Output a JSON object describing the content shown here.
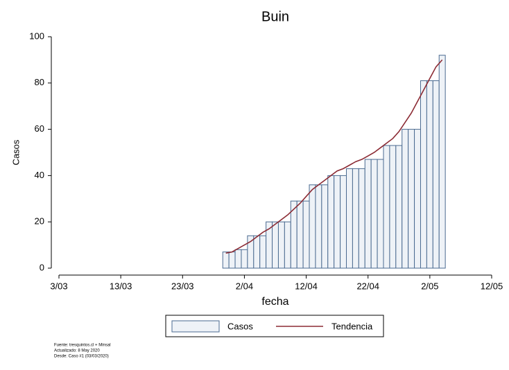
{
  "chart_data": {
    "type": "bar",
    "title": "Buin",
    "xlabel": "fecha",
    "ylabel": "Casos",
    "x": [
      "30/03",
      "31/03",
      "1/04",
      "2/04",
      "3/04",
      "4/04",
      "5/04",
      "6/04",
      "7/04",
      "8/04",
      "9/04",
      "10/04",
      "11/04",
      "12/04",
      "13/04",
      "14/04",
      "15/04",
      "16/04",
      "17/04",
      "18/04",
      "19/04",
      "20/04",
      "21/04",
      "22/04",
      "23/04",
      "24/04",
      "25/04",
      "26/04",
      "27/04",
      "28/04",
      "29/04",
      "30/04",
      "1/05",
      "2/05",
      "3/05",
      "4/05"
    ],
    "series": [
      {
        "name": "Casos",
        "type": "bar",
        "color": "#eef2f7",
        "edgecolor": "#4a6a90",
        "values": [
          7,
          7,
          8,
          8,
          14,
          14,
          14,
          20,
          20,
          20,
          20,
          29,
          29,
          29,
          36,
          36,
          36,
          40,
          40,
          40,
          43,
          43,
          43,
          47,
          47,
          47,
          53,
          53,
          53,
          60,
          60,
          60,
          81,
          81,
          81,
          92
        ]
      },
      {
        "name": "Tendencia",
        "type": "line",
        "color": "#8b2a33",
        "values": [
          6.5,
          7,
          8.5,
          10,
          11.5,
          13.5,
          15.5,
          17,
          19,
          21,
          23,
          25.5,
          28,
          31,
          34,
          36,
          38,
          40,
          42,
          43,
          44.5,
          46,
          47,
          48.5,
          50,
          52,
          54,
          56,
          59,
          63,
          67,
          72,
          77,
          82,
          87,
          90
        ]
      }
    ],
    "xlim": [
      "3/03",
      "12/05"
    ],
    "xticks": [
      "3/03",
      "13/03",
      "23/03",
      "2/04",
      "12/04",
      "22/04",
      "2/05",
      "12/05"
    ],
    "ylim": [
      0,
      100
    ],
    "yticks": [
      0,
      20,
      40,
      60,
      80,
      100
    ],
    "legend": "bottom",
    "notes": [
      "Fuente: tresquintos.cl + Minsal",
      "Actualizado: 8 May 2020",
      "Desde: Caso #1  (03/03/2020)"
    ]
  }
}
